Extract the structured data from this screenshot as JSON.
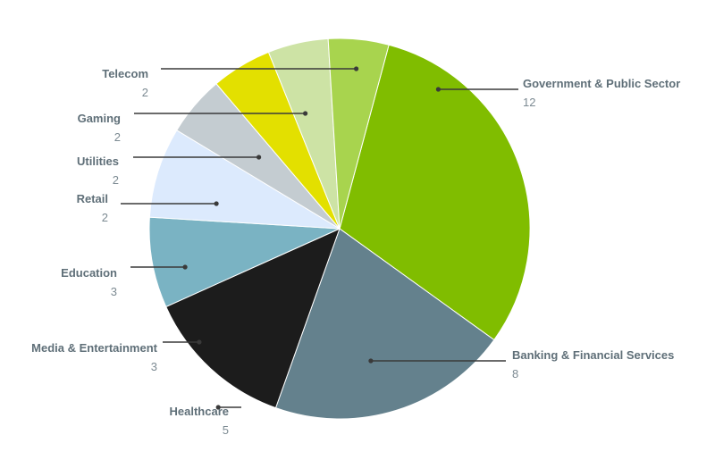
{
  "chart_data": {
    "type": "pie",
    "title": "",
    "start_angle_deg": -75,
    "direction": "clockwise",
    "slices": [
      {
        "label": "Government & Public Sector",
        "value": 12,
        "color": "#80bd00"
      },
      {
        "label": "Banking & Financial Services",
        "value": 8,
        "color": "#64818d"
      },
      {
        "label": "Healthcare",
        "value": 5,
        "color": "#1c1c1c"
      },
      {
        "label": "Media & Entertainment",
        "value": 3,
        "color": "#7ab3c3"
      },
      {
        "label": "Education",
        "value": 3,
        "color": "#dceafd"
      },
      {
        "label": "Retail",
        "value": 2,
        "color": "#c4ccd1"
      },
      {
        "label": "Utilities",
        "value": 2,
        "color": "#e3e000"
      },
      {
        "label": "Gaming",
        "value": 2,
        "color": "#cde3a5"
      },
      {
        "label": "Telecom",
        "value": 2,
        "color": "#a8d44e"
      }
    ]
  }
}
